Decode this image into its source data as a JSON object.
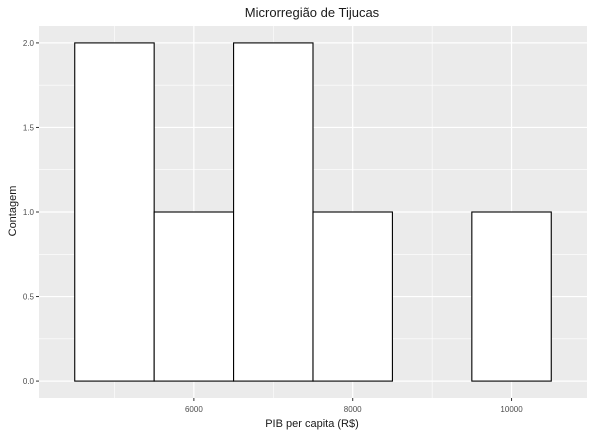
{
  "chart_data": {
    "type": "bar",
    "title": "Microrregião de  Tijucas",
    "xlabel": "PIB per capita (R$)",
    "ylabel": "Contagem",
    "bin_width": 1000,
    "bins": [
      {
        "start": 4500,
        "end": 5500,
        "count": 2
      },
      {
        "start": 5500,
        "end": 6500,
        "count": 1
      },
      {
        "start": 6500,
        "end": 7500,
        "count": 2
      },
      {
        "start": 7500,
        "end": 8500,
        "count": 1
      },
      {
        "start": 8500,
        "end": 9500,
        "count": 0
      },
      {
        "start": 9500,
        "end": 10500,
        "count": 1
      }
    ],
    "xlim": [
      4050,
      10950
    ],
    "ylim": [
      -0.1,
      2.1
    ],
    "x_ticks": [
      6000,
      8000,
      10000
    ],
    "x_tick_labels": [
      "6000",
      "8000",
      "10000"
    ],
    "y_ticks": [
      0,
      0.5,
      1,
      1.5,
      2
    ],
    "y_tick_labels": [
      "0.0",
      "0.5",
      "1.0",
      "1.5",
      "2.0"
    ],
    "grid": true,
    "colors": {
      "panel_background": "#ebebeb",
      "grid_major": "#ffffff",
      "bar_fill": "#ffffff",
      "bar_stroke": "#000000"
    }
  }
}
